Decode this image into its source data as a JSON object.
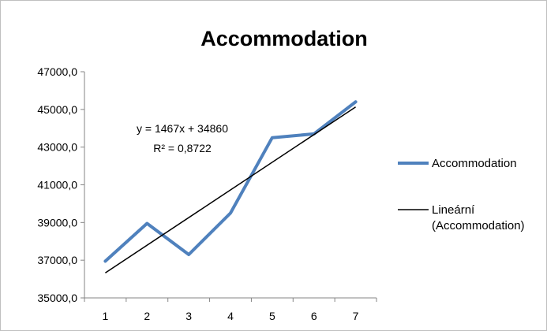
{
  "chart_data": {
    "type": "line",
    "title": "Accommodation",
    "xlabel": "",
    "ylabel": "",
    "x": [
      1,
      2,
      3,
      4,
      5,
      6,
      7
    ],
    "xticks": [
      "1",
      "2",
      "3",
      "4",
      "5",
      "6",
      "7"
    ],
    "yticks": [
      "35000,0",
      "37000,0",
      "39000,0",
      "41000,0",
      "43000,0",
      "45000,0",
      "47000,0"
    ],
    "ylim": [
      35000,
      47000
    ],
    "ytick_values": [
      35000,
      37000,
      39000,
      41000,
      43000,
      45000,
      47000
    ],
    "grid": false,
    "legend_position": "right",
    "series": [
      {
        "name": "Accommodation",
        "values": [
          36950,
          38950,
          37300,
          39500,
          43500,
          43700,
          45400
        ],
        "color": "#4f81bd"
      }
    ],
    "trendline": {
      "name_line1": "Lineární",
      "name_line2": "(Accommodation)",
      "slope": 1467,
      "intercept": 34860,
      "equation": "y = 1467x + 34860",
      "r_squared": "R² = 0,8722",
      "color": "#000000"
    }
  }
}
